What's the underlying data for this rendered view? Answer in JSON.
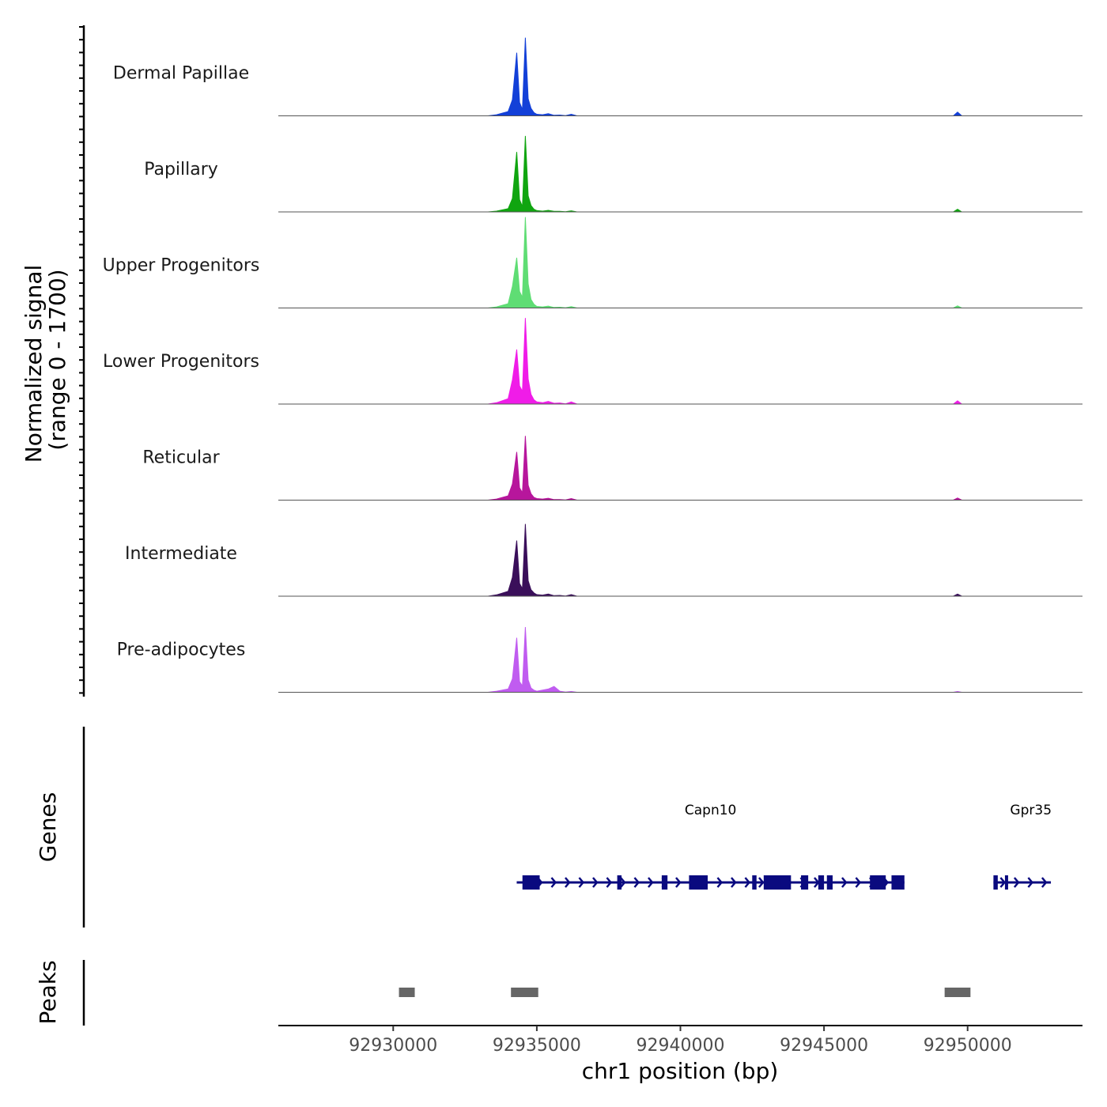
{
  "chart_data": {
    "type": "area",
    "title": "",
    "chromosome": "chr1",
    "xlabel": "chr1 position (bp)",
    "ylabel": "Normalized signal",
    "ylabel_range": "(range 0 - 1700)",
    "xlim": [
      92926000,
      92954000
    ],
    "ylim": [
      0,
      1700
    ],
    "x_ticks": [
      92930000,
      92935000,
      92940000,
      92945000,
      92950000
    ],
    "x_tick_labels": [
      "92930000",
      "92935000",
      "92940000",
      "92945000",
      "92950000"
    ],
    "coverage": {
      "x": [
        92926000,
        92933300,
        92933600,
        92934000,
        92934150,
        92934300,
        92934400,
        92934500,
        92934600,
        92934700,
        92934800,
        92934900,
        92935000,
        92935200,
        92935400,
        92935600,
        92935800,
        92936000,
        92936200,
        92936400,
        92946000,
        92949500,
        92949650,
        92949800,
        92954000
      ],
      "series": [
        {
          "name": "Dermal Papillae",
          "color": "#1340D8",
          "values": [
            0,
            0,
            20,
            80,
            300,
            1180,
            250,
            120,
            1460,
            320,
            140,
            60,
            30,
            20,
            40,
            10,
            15,
            5,
            30,
            0,
            0,
            0,
            70,
            0,
            0
          ]
        },
        {
          "name": "Papillary",
          "color": "#10A510",
          "values": [
            0,
            0,
            15,
            60,
            250,
            1120,
            230,
            100,
            1420,
            300,
            120,
            50,
            25,
            15,
            30,
            10,
            12,
            5,
            20,
            0,
            0,
            0,
            50,
            0,
            0
          ]
        },
        {
          "name": "Upper Progenitors",
          "color": "#5FDD74",
          "values": [
            0,
            0,
            20,
            80,
            400,
            940,
            310,
            200,
            1700,
            450,
            160,
            70,
            30,
            20,
            35,
            10,
            15,
            5,
            25,
            0,
            0,
            0,
            40,
            0,
            0
          ]
        },
        {
          "name": "Lower Progenitors",
          "color": "#F01CE8",
          "values": [
            0,
            0,
            25,
            100,
            450,
            1020,
            340,
            240,
            1610,
            470,
            180,
            80,
            40,
            25,
            50,
            15,
            20,
            5,
            40,
            0,
            0,
            0,
            60,
            0,
            0
          ]
        },
        {
          "name": "Reticular",
          "color": "#B7169C",
          "values": [
            0,
            0,
            20,
            80,
            300,
            900,
            230,
            140,
            1200,
            280,
            120,
            50,
            30,
            20,
            35,
            10,
            12,
            5,
            30,
            0,
            0,
            0,
            40,
            0,
            0
          ]
        },
        {
          "name": "Intermediate",
          "color": "#3A0F5A",
          "values": [
            0,
            0,
            25,
            90,
            350,
            1040,
            240,
            140,
            1350,
            290,
            120,
            60,
            30,
            20,
            40,
            10,
            15,
            5,
            30,
            0,
            0,
            0,
            40,
            0,
            0
          ]
        },
        {
          "name": "Pre-adipocytes",
          "color": "#C05CF0",
          "values": [
            0,
            0,
            20,
            60,
            250,
            1020,
            200,
            120,
            1220,
            230,
            80,
            40,
            20,
            40,
            60,
            110,
            20,
            5,
            15,
            0,
            0,
            0,
            15,
            0,
            0
          ]
        }
      ]
    },
    "genes": {
      "label": "Genes",
      "color": "#0A0A7F",
      "items": [
        {
          "name": "Capn10",
          "start": 92934300,
          "end": 92947800,
          "strand": "+",
          "exons": [
            [
              92934500,
              92935100
            ],
            [
              92937800,
              92937950
            ],
            [
              92939350,
              92939550
            ],
            [
              92940300,
              92940950
            ],
            [
              92942500,
              92942650
            ],
            [
              92942900,
              92943600
            ],
            [
              92943500,
              92943850
            ],
            [
              92944200,
              92944450
            ],
            [
              92944800,
              92945000
            ],
            [
              92945100,
              92945300
            ],
            [
              92946600,
              92947150
            ],
            [
              92947350,
              92947800
            ]
          ]
        },
        {
          "name": "Gpr35",
          "start": 92950900,
          "end": 92952900,
          "strand": "+",
          "exons": [
            [
              92950900,
              92951050
            ],
            [
              92951300,
              92951400
            ]
          ]
        }
      ]
    },
    "peaks": {
      "label": "Peaks",
      "color": "#666666",
      "ranges": [
        [
          92930200,
          92930750
        ],
        [
          92934100,
          92935050
        ],
        [
          92949200,
          92950100
        ]
      ]
    }
  }
}
